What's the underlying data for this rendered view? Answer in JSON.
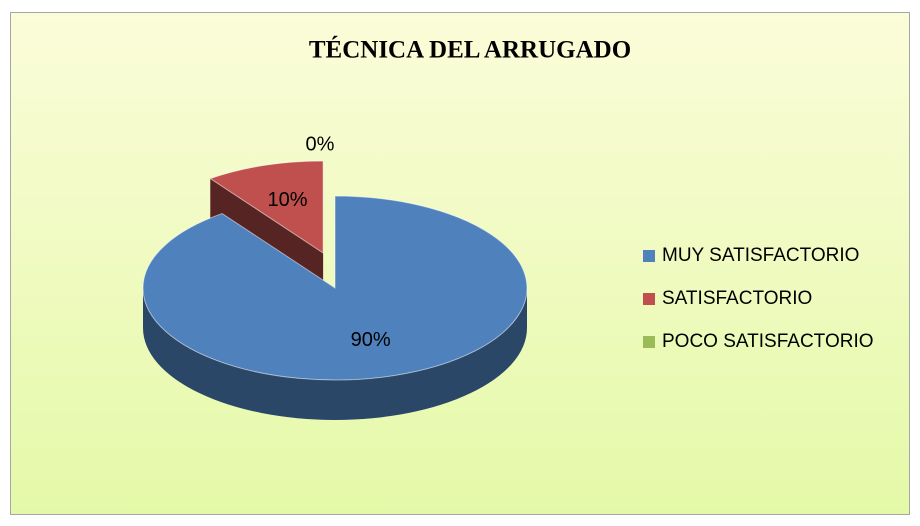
{
  "chart_data": {
    "type": "pie3d",
    "title": "TÉCNICA DEL ARRUGADO",
    "categories": [
      "MUY SATISFACTORIO",
      "SATISFACTORIO",
      "POCO SATISFACTORIO"
    ],
    "values": [
      90,
      10,
      0
    ],
    "value_labels": [
      "90%",
      "10%",
      "0%"
    ],
    "colors": [
      "#4f81bd",
      "#c0504d",
      "#9bbb59"
    ],
    "exploded": [
      false,
      true,
      false
    ],
    "legend": "right"
  }
}
